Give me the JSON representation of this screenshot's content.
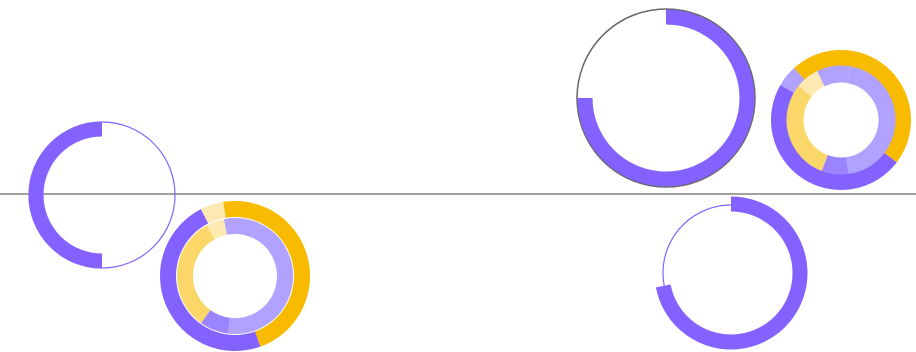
{
  "colors": {
    "background": "#ffffff",
    "purple": "#8462ff",
    "purple_light": "#b2a2ff",
    "purple_mid": "#9b85ff",
    "gold": "#f8bb00",
    "gold_light": "#fbd76a",
    "cream": "#fdeab2",
    "outline_purple": "#8462ff",
    "outline_gray": "#666666",
    "divider": "#808080"
  },
  "widgets": [
    {
      "kind": "progress-ring",
      "name": "ring-half-left",
      "progress": 0.5,
      "start_deg": 90,
      "sweep": "clockwise",
      "track": "thin-purple-outline"
    },
    {
      "kind": "sunburst",
      "name": "donut-left",
      "outer_segments": [
        {
          "color": "gold",
          "fraction": 0.32
        },
        {
          "color": "purple",
          "fraction": 0.48
        },
        {
          "color": "cream",
          "fraction": 0.05
        },
        {
          "color": "gold",
          "fraction": 0.15
        }
      ],
      "inner_segments": [
        {
          "color": "purple_light",
          "fraction": 0.45
        },
        {
          "color": "purple_mid",
          "fraction": 0.08
        },
        {
          "color": "gold_light",
          "fraction": 0.32
        },
        {
          "color": "cream",
          "fraction": 0.05
        },
        {
          "color": "purple_light",
          "fraction": 0.1
        }
      ]
    },
    {
      "kind": "progress-ring",
      "name": "ring-three-quarter-top",
      "progress": 0.75,
      "start_deg": -90,
      "sweep": "clockwise",
      "track": "gray-outline"
    },
    {
      "kind": "sunburst",
      "name": "donut-right",
      "outer_segments": [
        {
          "color": "gold",
          "fraction": 0.27
        },
        {
          "color": "purple",
          "fraction": 0.48
        },
        {
          "color": "purple_light",
          "fraction": 0.05
        },
        {
          "color": "gold",
          "fraction": 0.2
        }
      ],
      "inner_segments": [
        {
          "color": "purple_light",
          "fraction": 0.45
        },
        {
          "color": "purple_mid",
          "fraction": 0.08
        },
        {
          "color": "gold_light",
          "fraction": 0.3
        },
        {
          "color": "cream",
          "fraction": 0.07
        },
        {
          "color": "purple_light",
          "fraction": 0.1
        }
      ]
    },
    {
      "kind": "progress-ring",
      "name": "ring-bottom-right",
      "progress": 0.72,
      "start_deg": -90,
      "sweep": "clockwise",
      "track": "thin-purple-outline"
    }
  ]
}
